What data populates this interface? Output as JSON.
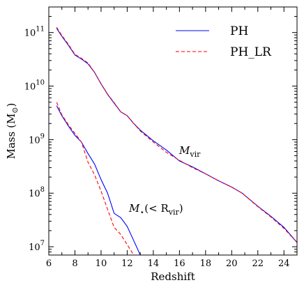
{
  "chart_data": {
    "type": "line",
    "xlabel": "Redshift",
    "ylabel": "Mass (M",
    "ylabel_sub": "⊙",
    "ylabel_close": ")",
    "xlim": [
      6,
      25
    ],
    "ylim": [
      7000000,
      300000000000
    ],
    "yscale": "log",
    "x_ticks": [
      6,
      8,
      10,
      12,
      14,
      16,
      18,
      20,
      22,
      24
    ],
    "x_tick_labels": [
      "6",
      "8",
      "10",
      "12",
      "14",
      "16",
      "18",
      "20",
      "22",
      "24"
    ],
    "y_ticks": [
      10000000,
      100000000,
      1000000000,
      10000000000,
      100000000000
    ],
    "y_tick_labels": [
      {
        "base": "10",
        "exp": "7"
      },
      {
        "base": "10",
        "exp": "8"
      },
      {
        "base": "10",
        "exp": "9"
      },
      {
        "base": "10",
        "exp": "10"
      },
      {
        "base": "10",
        "exp": "11"
      }
    ],
    "grid": false,
    "legend_position": "top-right",
    "legend": [
      {
        "label": "PH",
        "color": "#0000ff",
        "style": "solid"
      },
      {
        "label": "PH_LR",
        "color": "#ff0000",
        "style": "dashed"
      }
    ],
    "annotations": [
      {
        "main": "M",
        "sub": "vir",
        "x": 16,
        "y": 500000000
      },
      {
        "main": "M",
        "sub": "⋆",
        "tail": "(< R",
        "tail_sub": "vir",
        "close": ")",
        "x": 11.9,
        "y": 48000000
      }
    ],
    "series": [
      {
        "name": "PH",
        "group": "M_vir",
        "color": "#0000ff",
        "style": "solid",
        "x": [
          6.6,
          7.0,
          7.5,
          8.0,
          8.5,
          9.0,
          9.5,
          10.0,
          10.5,
          11.0,
          11.5,
          12.0,
          12.5,
          13.0,
          14.0,
          15.0,
          16.0,
          17.0,
          18.0,
          19.0,
          20.0,
          20.8,
          22.0,
          23.0,
          24.0,
          25.0
        ],
        "y": [
          120000000000,
          85000000000,
          58000000000,
          38000000000,
          32000000000,
          26000000000,
          18000000000,
          11000000000,
          7000000000,
          4800000000,
          3300000000,
          2800000000,
          2000000000,
          1500000000,
          950000000,
          640000000,
          400000000,
          310000000,
          230000000,
          170000000,
          130000000,
          100000000,
          57000000,
          37000000,
          23000000,
          12000000
        ]
      },
      {
        "name": "PH_LR",
        "group": "M_vir",
        "color": "#ff0000",
        "style": "dashed",
        "x": [
          6.6,
          7.0,
          7.5,
          8.0,
          8.5,
          9.0,
          9.5,
          10.0,
          10.5,
          11.0,
          11.5,
          12.0,
          12.5,
          13.0,
          14.0,
          15.0,
          16.0,
          17.0,
          18.0,
          19.0,
          20.0,
          20.8,
          22.0,
          23.0,
          24.0,
          25.0
        ],
        "y": [
          125000000000,
          88000000000,
          60000000000,
          39000000000,
          33000000000,
          27000000000,
          18000000000,
          11000000000,
          7100000000,
          4900000000,
          3300000000,
          2800000000,
          2000000000,
          1450000000,
          900000000,
          580000000,
          410000000,
          300000000,
          230000000,
          170000000,
          130000000,
          100000000,
          56000000,
          36000000,
          22000000,
          12000000
        ]
      },
      {
        "name": "PH",
        "group": "M_star",
        "color": "#0000ff",
        "style": "solid",
        "x": [
          6.6,
          7.0,
          7.5,
          8.0,
          8.5,
          9.0,
          9.5,
          10.0,
          10.5,
          11.0,
          11.5,
          12.0,
          12.5,
          13.0
        ],
        "y": [
          4300000000,
          2800000000,
          1800000000,
          1200000000,
          900000000,
          550000000,
          350000000,
          180000000,
          100000000,
          42000000,
          35000000,
          24000000,
          13000000,
          7000000
        ]
      },
      {
        "name": "PH_LR",
        "group": "M_star",
        "color": "#ff0000",
        "style": "dashed",
        "x": [
          6.6,
          7.0,
          7.5,
          8.0,
          8.5,
          9.0,
          9.5,
          10.0,
          10.5,
          11.0,
          11.5,
          12.0,
          12.5
        ],
        "y": [
          5000000000,
          2900000000,
          1900000000,
          1300000000,
          900000000,
          380000000,
          220000000,
          110000000,
          50000000,
          23000000,
          17000000,
          11000000,
          7000000
        ]
      }
    ]
  }
}
